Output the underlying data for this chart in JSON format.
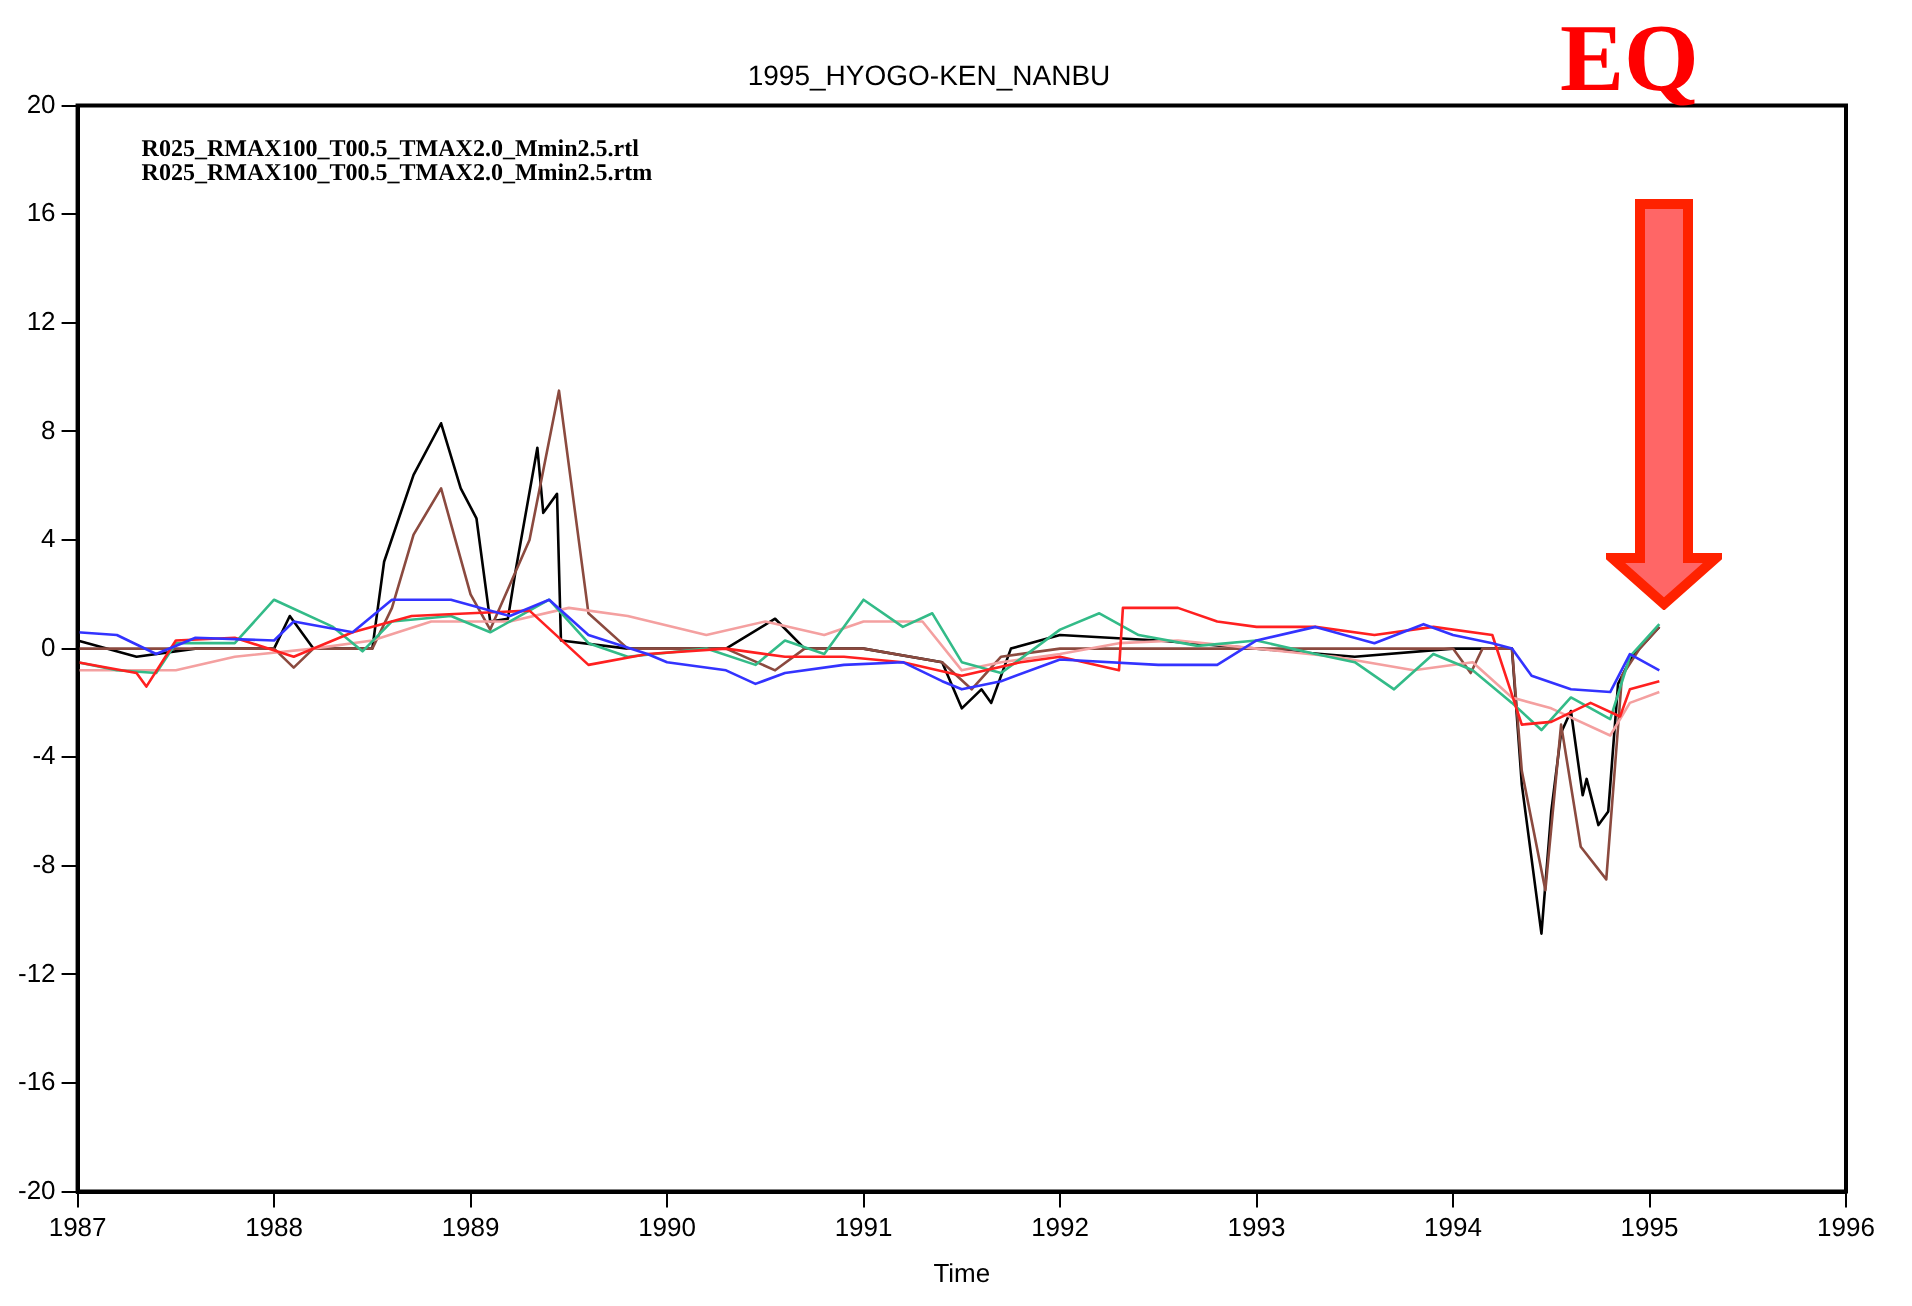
{
  "chart_data": {
    "type": "line",
    "title": "1995_HYOGO-KEN_NANBU",
    "xlabel": "Time",
    "annotations": [
      "R025_RMAX100_T00.5_TMAX2.0_Mmin2.5.rtl",
      "R025_RMAX100_T00.5_TMAX2.0_Mmin2.5.rtm",
      "EQ"
    ],
    "xlim": [
      1987,
      1996
    ],
    "xticks": [
      1987,
      1988,
      1989,
      1990,
      1991,
      1992,
      1993,
      1994,
      1995,
      1996
    ],
    "ylim": [
      -20,
      20
    ],
    "yticks": [
      -20,
      -16,
      -12,
      -8,
      -4,
      0,
      4,
      8,
      12,
      16,
      20
    ],
    "grid": false,
    "legend": false,
    "marker": "none",
    "line_style": "solid",
    "series": [
      {
        "color": "#3333ff",
        "x": [
          1987,
          1987.2,
          1987.4,
          1987.6,
          1988,
          1988.1,
          1988.4,
          1988.6,
          1988.9,
          1989.2,
          1989.4,
          1989.6,
          1989.9,
          1990,
          1990.3,
          1990.45,
          1990.6,
          1990.9,
          1991.2,
          1991.4,
          1991.5,
          1991.7,
          1992,
          1992.5,
          1992.8,
          1993,
          1993.3,
          1993.6,
          1993.85,
          1994,
          1994.2,
          1994.3,
          1994.4,
          1994.6,
          1994.8,
          1994.9,
          1995.05
        ],
        "values": [
          0.6,
          0.5,
          -0.2,
          0.4,
          0.3,
          1,
          0.6,
          1.8,
          1.8,
          1.2,
          1.8,
          0.5,
          -0.2,
          -0.5,
          -0.8,
          -1.3,
          -0.9,
          -0.6,
          -0.5,
          -1.2,
          -1.5,
          -1.2,
          -0.4,
          -0.6,
          -0.6,
          0.3,
          0.8,
          0.2,
          0.9,
          0.5,
          0.2,
          0,
          -1,
          -1.5,
          -1.6,
          -0.2,
          -0.8
        ]
      },
      {
        "color": "#ff2020",
        "x": [
          1987,
          1987.3,
          1987.35,
          1987.5,
          1987.8,
          1988.1,
          1988.4,
          1988.7,
          1989,
          1989.3,
          1989.6,
          1989.9,
          1990.3,
          1990.6,
          1990.9,
          1991.2,
          1991.5,
          1991.8,
          1992,
          1992.3,
          1992.32,
          1992.6,
          1992.8,
          1993,
          1993.3,
          1993.6,
          1993.9,
          1994.2,
          1994.35,
          1994.5,
          1994.7,
          1994.85,
          1994.9,
          1995.05
        ],
        "values": [
          -0.5,
          -0.9,
          -1.4,
          0.3,
          0.4,
          -0.3,
          0.6,
          1.2,
          1.3,
          1.4,
          -0.6,
          -0.2,
          0,
          -0.3,
          -0.3,
          -0.5,
          -1,
          -0.5,
          -0.3,
          -0.8,
          1.5,
          1.5,
          1,
          0.8,
          0.8,
          0.5,
          0.8,
          0.5,
          -2.8,
          -2.7,
          -2,
          -2.5,
          -1.5,
          -1.2
        ]
      },
      {
        "color": "#33bb88",
        "x": [
          1987,
          1987.2,
          1987.4,
          1987.5,
          1987.8,
          1988,
          1988.3,
          1988.45,
          1988.6,
          1988.9,
          1989.1,
          1989.4,
          1989.6,
          1989.8,
          1990.2,
          1990.45,
          1990.6,
          1990.8,
          1991,
          1991.2,
          1991.35,
          1991.5,
          1991.7,
          1992,
          1992.2,
          1992.4,
          1992.7,
          1993,
          1993.3,
          1993.5,
          1993.7,
          1993.9,
          1994.1,
          1994.3,
          1994.45,
          1994.6,
          1994.8,
          1994.9,
          1995.05
        ],
        "values": [
          -0.5,
          -0.8,
          -0.9,
          0.2,
          0.2,
          1.8,
          0.8,
          -0.1,
          1,
          1.2,
          0.6,
          1.8,
          0.2,
          -0.3,
          0,
          -0.6,
          0.3,
          -0.2,
          1.8,
          0.8,
          1.3,
          -0.5,
          -0.9,
          0.7,
          1.3,
          0.5,
          0.1,
          0.3,
          -0.2,
          -0.5,
          -1.5,
          -0.2,
          -0.8,
          -2,
          -3,
          -1.8,
          -2.6,
          -0.3,
          0.9
        ]
      },
      {
        "color": "#f4a0a0",
        "x": [
          1987,
          1987.3,
          1987.5,
          1987.8,
          1988.2,
          1988.5,
          1988.8,
          1989.2,
          1989.5,
          1989.8,
          1990.2,
          1990.5,
          1990.8,
          1991,
          1991.3,
          1991.5,
          1991.7,
          1992,
          1992.3,
          1992.6,
          1993,
          1993.4,
          1993.8,
          1994.1,
          1994.3,
          1994.5,
          1994.8,
          1994.9,
          1995.05
        ],
        "values": [
          -0.8,
          -0.8,
          -0.8,
          -0.3,
          0,
          0.3,
          1,
          1,
          1.5,
          1.2,
          0.5,
          1,
          0.5,
          1,
          1,
          -0.8,
          -0.5,
          -0.2,
          0.2,
          0.3,
          0,
          -0.3,
          -0.8,
          -0.5,
          -1.8,
          -2.2,
          -3.2,
          -2,
          -1.6
        ]
      },
      {
        "color": "#8b4a3f",
        "x": [
          1987,
          1987.5,
          1988,
          1988.1,
          1988.2,
          1988.5,
          1988.6,
          1988.71,
          1988.85,
          1989,
          1989.1,
          1989.3,
          1989.45,
          1989.6,
          1989.8,
          1990.3,
          1990.55,
          1990.7,
          1991,
          1991.4,
          1991.55,
          1991.7,
          1992,
          1993,
          1993.5,
          1994,
          1994.09,
          1994.15,
          1994.3,
          1994.35,
          1994.47,
          1994.55,
          1994.65,
          1994.78,
          1994.86,
          1994.95,
          1995.05
        ],
        "values": [
          0,
          0,
          0,
          -0.7,
          0,
          0,
          1.5,
          4.2,
          5.9,
          2,
          0.7,
          4,
          9.5,
          1.3,
          0,
          0,
          -0.8,
          0,
          0,
          -0.5,
          -1.5,
          -0.3,
          0,
          0,
          0,
          0,
          -0.9,
          0,
          0,
          -4.5,
          -8.9,
          -2.8,
          -7.3,
          -8.5,
          -1,
          0,
          0.8
        ]
      },
      {
        "color": "#000000",
        "x": [
          1987,
          1987.3,
          1987.6,
          1988,
          1988.08,
          1988.2,
          1988.5,
          1988.56,
          1988.71,
          1988.85,
          1988.95,
          1989.03,
          1989.1,
          1989.19,
          1989.23,
          1989.34,
          1989.37,
          1989.44,
          1989.46,
          1989.8,
          1990.3,
          1990.55,
          1990.7,
          1991,
          1991.4,
          1991.5,
          1991.6,
          1991.65,
          1991.75,
          1992,
          1992.5,
          1993,
          1993.5,
          1994,
          1994.3,
          1994.35,
          1994.45,
          1994.5,
          1994.55,
          1994.6,
          1994.66,
          1994.68,
          1994.74,
          1994.79,
          1994.84,
          1994.91,
          1995.05
        ],
        "values": [
          0.3,
          -0.3,
          0,
          0,
          1.2,
          0,
          0,
          3.2,
          6.4,
          8.3,
          5.9,
          4.8,
          1,
          1.1,
          2.9,
          7.4,
          5,
          5.7,
          0.3,
          0,
          0,
          1.1,
          0,
          0,
          -0.5,
          -2.2,
          -1.5,
          -2,
          0,
          0.5,
          0.3,
          0,
          -0.3,
          0,
          0,
          -5,
          -10.5,
          -6,
          -3.1,
          -2.3,
          -5.4,
          -4.8,
          -6.5,
          -6,
          -1.3,
          -0.3,
          0.8
        ]
      }
    ]
  }
}
